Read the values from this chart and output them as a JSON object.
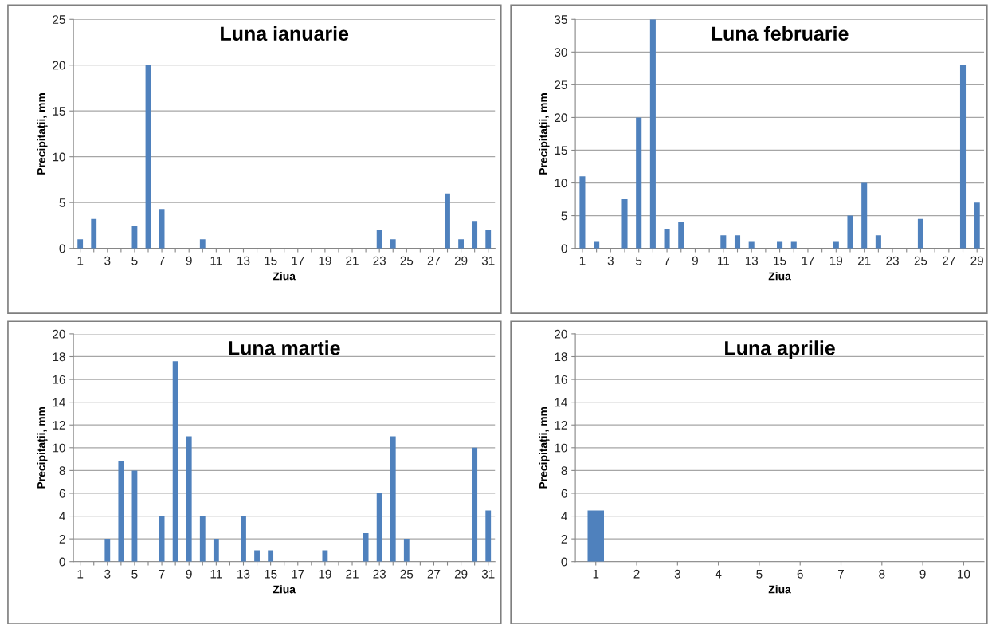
{
  "chart_data": [
    {
      "type": "bar",
      "title": "Luna ianuarie",
      "xlabel": "Ziua",
      "ylabel": "Precipitații, mm",
      "categories": [
        "1",
        null,
        "3",
        null,
        "5",
        null,
        "7",
        null,
        "9",
        null,
        "11",
        null,
        "13",
        null,
        "15",
        null,
        "17",
        null,
        "19",
        null,
        "21",
        null,
        "23",
        null,
        "25",
        null,
        "27",
        null,
        "29",
        null,
        "31"
      ],
      "values": [
        1,
        3.2,
        0,
        0,
        2.5,
        20,
        4.3,
        0,
        0,
        1,
        0,
        0,
        0,
        0,
        0,
        0,
        0,
        0,
        0,
        0,
        0,
        0,
        2,
        1,
        0,
        0,
        0,
        6,
        1,
        3,
        2
      ],
      "color": "#4f81bd",
      "ylim": [
        0,
        25
      ],
      "yticks": [
        0,
        5,
        10,
        15,
        20,
        25
      ],
      "grid": "y"
    },
    {
      "type": "bar",
      "title": "Luna februarie",
      "xlabel": "Ziua",
      "ylabel": "Precipitații, mm",
      "categories": [
        "1",
        null,
        "3",
        null,
        "5",
        null,
        "7",
        null,
        "9",
        null,
        "11",
        null,
        "13",
        null,
        "15",
        null,
        "17",
        null,
        "19",
        null,
        "21",
        null,
        "23",
        null,
        "25",
        null,
        "27",
        null,
        "29"
      ],
      "values": [
        11,
        1,
        0,
        7.5,
        20,
        35,
        3,
        4,
        0,
        0,
        2,
        2,
        1,
        0,
        1,
        1,
        0,
        0,
        1,
        5,
        10,
        2,
        0,
        0,
        4.5,
        0,
        0,
        28,
        7
      ],
      "color": "#4f81bd",
      "ylim": [
        0,
        35
      ],
      "yticks": [
        0,
        5,
        10,
        15,
        20,
        25,
        30,
        35
      ],
      "grid": "y"
    },
    {
      "type": "bar",
      "title": "Luna martie",
      "xlabel": "Ziua",
      "ylabel": "Precipitații, mm",
      "categories": [
        "1",
        null,
        "3",
        null,
        "5",
        null,
        "7",
        null,
        "9",
        null,
        "11",
        null,
        "13",
        null,
        "15",
        null,
        "17",
        null,
        "19",
        null,
        "21",
        null,
        "23",
        null,
        "25",
        null,
        "27",
        null,
        "29",
        null,
        "31"
      ],
      "values": [
        0,
        0,
        2,
        8.8,
        8,
        0,
        4,
        17.6,
        11,
        4,
        2,
        0,
        4,
        1,
        1,
        0,
        0,
        0,
        1,
        0,
        0,
        2.5,
        6,
        11,
        2,
        0,
        0,
        0,
        0,
        10,
        4.5
      ],
      "color": "#4f81bd",
      "ylim": [
        0,
        20
      ],
      "yticks": [
        0,
        2,
        4,
        6,
        8,
        10,
        12,
        14,
        16,
        18,
        20
      ],
      "grid": "y"
    },
    {
      "type": "bar",
      "title": "Luna aprilie",
      "xlabel": "Ziua",
      "ylabel": "Precipitații, mm",
      "categories": [
        "1",
        "2",
        "3",
        "4",
        "5",
        "6",
        "7",
        "8",
        "9",
        "10"
      ],
      "values": [
        4.5,
        0,
        0,
        0,
        0,
        0,
        0,
        0,
        0,
        0
      ],
      "color": "#4f81bd",
      "ylim": [
        0,
        20
      ],
      "yticks": [
        0,
        2,
        4,
        6,
        8,
        10,
        12,
        14,
        16,
        18,
        20
      ],
      "grid": "y"
    }
  ]
}
